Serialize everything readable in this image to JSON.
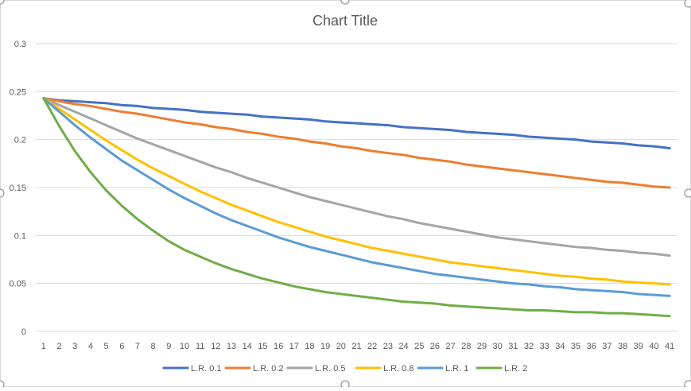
{
  "chart_data": {
    "type": "line",
    "title": "Chart Title",
    "xlabel": "",
    "ylabel": "",
    "x": [
      1,
      2,
      3,
      4,
      5,
      6,
      7,
      8,
      9,
      10,
      11,
      12,
      13,
      14,
      15,
      16,
      17,
      18,
      19,
      20,
      21,
      22,
      23,
      24,
      25,
      26,
      27,
      28,
      29,
      30,
      31,
      32,
      33,
      34,
      35,
      36,
      37,
      38,
      39,
      40,
      41
    ],
    "y_ticks": [
      "0",
      "0.05",
      "0.1",
      "0.15",
      "0.2",
      "0.25",
      "0.3"
    ],
    "ylim": [
      0,
      0.3
    ],
    "grid": true,
    "legend_position": "bottom",
    "series": [
      {
        "name": "L.R. 0.1",
        "color": "#4472C4",
        "values": [
          0.243,
          0.241,
          0.24,
          0.239,
          0.238,
          0.236,
          0.235,
          0.233,
          0.232,
          0.231,
          0.229,
          0.228,
          0.227,
          0.226,
          0.224,
          0.223,
          0.222,
          0.221,
          0.219,
          0.218,
          0.217,
          0.216,
          0.215,
          0.213,
          0.212,
          0.211,
          0.21,
          0.208,
          0.207,
          0.206,
          0.205,
          0.203,
          0.202,
          0.201,
          0.2,
          0.198,
          0.197,
          0.196,
          0.194,
          0.193,
          0.191
        ]
      },
      {
        "name": "L.R. 0.2",
        "color": "#ED7D31",
        "values": [
          0.243,
          0.24,
          0.237,
          0.235,
          0.232,
          0.229,
          0.227,
          0.224,
          0.221,
          0.218,
          0.216,
          0.213,
          0.211,
          0.208,
          0.206,
          0.203,
          0.201,
          0.198,
          0.196,
          0.193,
          0.191,
          0.188,
          0.186,
          0.184,
          0.181,
          0.179,
          0.177,
          0.174,
          0.172,
          0.17,
          0.168,
          0.166,
          0.164,
          0.162,
          0.16,
          0.158,
          0.156,
          0.155,
          0.153,
          0.151,
          0.15
        ]
      },
      {
        "name": "L.R. 0.5",
        "color": "#A5A5A5",
        "values": [
          0.243,
          0.236,
          0.229,
          0.222,
          0.215,
          0.208,
          0.201,
          0.195,
          0.189,
          0.183,
          0.177,
          0.171,
          0.166,
          0.16,
          0.155,
          0.15,
          0.145,
          0.14,
          0.136,
          0.132,
          0.128,
          0.124,
          0.12,
          0.117,
          0.113,
          0.11,
          0.107,
          0.104,
          0.101,
          0.098,
          0.096,
          0.094,
          0.092,
          0.09,
          0.088,
          0.087,
          0.085,
          0.084,
          0.082,
          0.081,
          0.079
        ]
      },
      {
        "name": "L.R. 0.8",
        "color": "#FFC000",
        "values": [
          0.243,
          0.232,
          0.221,
          0.21,
          0.199,
          0.189,
          0.179,
          0.17,
          0.162,
          0.154,
          0.146,
          0.139,
          0.132,
          0.126,
          0.12,
          0.114,
          0.109,
          0.104,
          0.099,
          0.095,
          0.091,
          0.087,
          0.084,
          0.081,
          0.078,
          0.075,
          0.072,
          0.07,
          0.068,
          0.066,
          0.064,
          0.062,
          0.06,
          0.058,
          0.057,
          0.055,
          0.054,
          0.052,
          0.051,
          0.05,
          0.049
        ]
      },
      {
        "name": "L.R. 1",
        "color": "#5B9BD5",
        "values": [
          0.243,
          0.229,
          0.215,
          0.202,
          0.19,
          0.178,
          0.168,
          0.158,
          0.148,
          0.139,
          0.131,
          0.123,
          0.116,
          0.11,
          0.104,
          0.098,
          0.093,
          0.088,
          0.084,
          0.08,
          0.076,
          0.072,
          0.069,
          0.066,
          0.063,
          0.06,
          0.058,
          0.056,
          0.054,
          0.052,
          0.05,
          0.049,
          0.047,
          0.046,
          0.044,
          0.043,
          0.042,
          0.041,
          0.039,
          0.038,
          0.037
        ]
      },
      {
        "name": "L.R. 2",
        "color": "#70AD47",
        "values": [
          0.243,
          0.214,
          0.188,
          0.166,
          0.147,
          0.131,
          0.117,
          0.105,
          0.094,
          0.085,
          0.078,
          0.071,
          0.065,
          0.06,
          0.055,
          0.051,
          0.047,
          0.044,
          0.041,
          0.039,
          0.037,
          0.035,
          0.033,
          0.031,
          0.03,
          0.029,
          0.027,
          0.026,
          0.025,
          0.024,
          0.023,
          0.022,
          0.022,
          0.021,
          0.02,
          0.02,
          0.019,
          0.019,
          0.018,
          0.017,
          0.016
        ]
      }
    ]
  }
}
